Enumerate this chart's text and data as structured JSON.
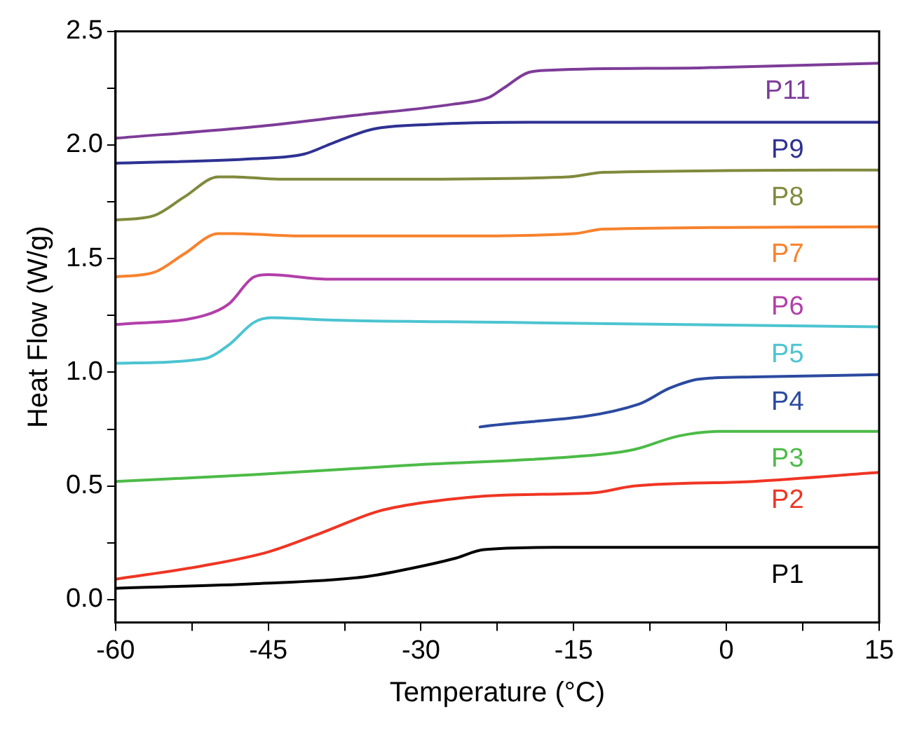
{
  "chart_data": {
    "type": "line",
    "xlabel": "Temperature (°C)",
    "ylabel": "Heat Flow (W/g)",
    "xlim": [
      -60,
      15
    ],
    "ylim": [
      -0.1,
      2.5
    ],
    "xticks": [
      -60,
      {
        "value": -52.5,
        "label": null
      },
      -45,
      {
        "value": -37.5,
        "label": null
      },
      -30,
      {
        "value": -22.5,
        "label": null
      },
      -15,
      {
        "value": -7.5,
        "label": null
      },
      0,
      {
        "value": 7.5,
        "label": null
      },
      15
    ],
    "yticks": [
      {
        "value": 0,
        "label": "0.0"
      },
      {
        "value": 0.25,
        "label": null
      },
      0.5,
      {
        "value": 0.75,
        "label": null
      },
      {
        "value": 1,
        "label": "1.0"
      },
      {
        "value": 1.25,
        "label": null
      },
      1.5,
      {
        "value": 1.75,
        "label": null
      },
      {
        "value": 2,
        "label": "2.0"
      },
      {
        "value": 2.25,
        "label": null
      },
      2.5
    ],
    "grid": false,
    "legend": false,
    "marker": "none",
    "line_style": "solid",
    "series": [
      {
        "name": "P11",
        "color": "#7d3c98",
        "x": [
          -60,
          -46.4,
          -36.6,
          -26.8,
          -23.3,
          -21.9,
          -19.4,
          -17,
          -2.2,
          15
        ],
        "values": [
          2.03,
          2.08,
          2.13,
          2.18,
          2.21,
          2.25,
          2.32,
          2.33,
          2.34,
          2.36
        ]
      },
      {
        "name": "P9",
        "color": "#2e3192",
        "x": [
          -60,
          -46.4,
          -41.5,
          -38.6,
          -34.7,
          -29.3,
          -19.4,
          15
        ],
        "values": [
          1.92,
          1.94,
          1.96,
          2.01,
          2.07,
          2.09,
          2.1,
          2.1
        ]
      },
      {
        "name": "P8",
        "color": "#808a3c",
        "x": [
          -60,
          -56.2,
          -53.3,
          -49.9,
          -48.4,
          -44,
          -31.7,
          -15.5,
          -12.1,
          15
        ],
        "values": [
          1.67,
          1.69,
          1.77,
          1.86,
          1.86,
          1.85,
          1.85,
          1.86,
          1.88,
          1.89
        ]
      },
      {
        "name": "P7",
        "color": "#f7822d",
        "x": [
          -60,
          -56.2,
          -53.3,
          -49.9,
          -48.4,
          -41.5,
          -26.8,
          -15,
          -12.1,
          15
        ],
        "values": [
          1.42,
          1.44,
          1.52,
          1.61,
          1.61,
          1.6,
          1.6,
          1.61,
          1.63,
          1.64
        ]
      },
      {
        "name": "P6",
        "color": "#b23fa9",
        "x": [
          -60,
          -51.3,
          -48.9,
          -46.4,
          -45,
          -39.1,
          -21.9,
          15
        ],
        "values": [
          1.21,
          1.25,
          1.3,
          1.42,
          1.43,
          1.41,
          1.41,
          1.41
        ]
      },
      {
        "name": "P5",
        "color": "#4cc4d1",
        "x": [
          -60,
          -51.3,
          -48.9,
          -46.4,
          -44.7,
          -39.1,
          -21.9,
          15
        ],
        "values": [
          1.04,
          1.06,
          1.12,
          1.22,
          1.24,
          1.23,
          1.22,
          1.2
        ]
      },
      {
        "name": "P4",
        "color": "#2b4aa0",
        "x": [
          -24.2,
          -8.6,
          -5.6,
          -2.7,
          2.7,
          15
        ],
        "values": [
          0.76,
          0.86,
          0.93,
          0.97,
          0.98,
          0.99
        ]
      },
      {
        "name": "P3",
        "color": "#4cbb47",
        "x": [
          -60,
          -46.4,
          -31.7,
          -12.1,
          -9.1,
          -4.7,
          -0.7,
          15
        ],
        "values": [
          0.52,
          0.55,
          0.59,
          0.64,
          0.66,
          0.72,
          0.74,
          0.74
        ]
      },
      {
        "name": "P2",
        "color": "#f03523",
        "x": [
          -60,
          -51.3,
          -45,
          -40,
          -34.1,
          -29.3,
          -21.9,
          -13.1,
          -9.1,
          2.7,
          15
        ],
        "values": [
          0.09,
          0.15,
          0.21,
          0.29,
          0.39,
          0.43,
          0.46,
          0.47,
          0.5,
          0.52,
          0.56
        ]
      },
      {
        "name": "P1",
        "color": "#000000",
        "x": [
          -60,
          -46.4,
          -35.6,
          -30.7,
          -26.8,
          -23.8,
          -17,
          15
        ],
        "values": [
          0.05,
          0.07,
          0.1,
          0.14,
          0.18,
          0.22,
          0.23,
          0.23
        ]
      }
    ]
  }
}
